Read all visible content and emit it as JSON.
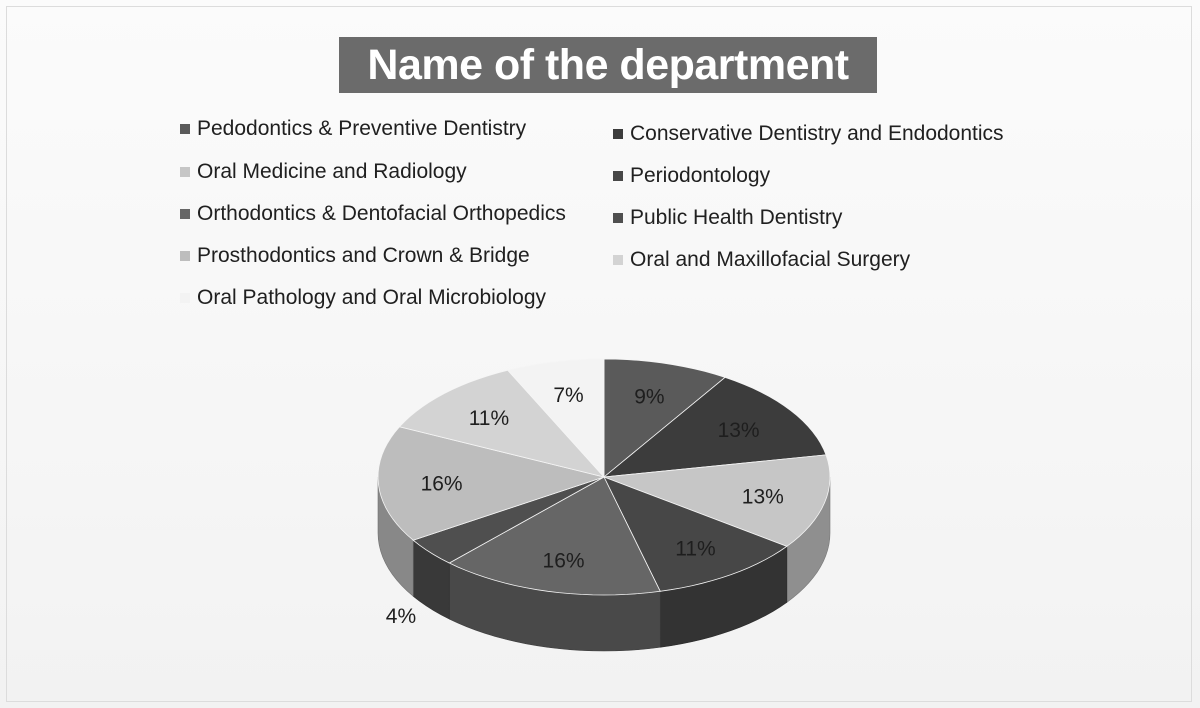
{
  "chart_data": {
    "type": "pie",
    "title": "Name of the department",
    "legend": "top",
    "series": [
      {
        "name": "Pedodontics & Preventive Dentistry",
        "value": 9,
        "label": "9%",
        "color": "#5a5a5a"
      },
      {
        "name": "Conservative Dentistry and Endodontics",
        "value": 13,
        "label": "13%",
        "color": "#3c3c3c"
      },
      {
        "name": "Oral Medicine and Radiology",
        "value": 13,
        "label": "13%",
        "color": "#c6c6c6"
      },
      {
        "name": "Periodontology",
        "value": 11,
        "label": "11%",
        "color": "#474747"
      },
      {
        "name": "Orthodontics & Dentofacial Orthopedics",
        "value": 16,
        "label": "16%",
        "color": "#666666"
      },
      {
        "name": "Public Health Dentistry",
        "value": 4,
        "label": "4%",
        "color": "#4f4f4f"
      },
      {
        "name": "Prosthodontics and Crown & Bridge",
        "value": 16,
        "label": "16%",
        "color": "#bdbdbd"
      },
      {
        "name": "Oral and Maxillofacial Surgery",
        "value": 11,
        "label": "11%",
        "color": "#d3d3d3"
      },
      {
        "name": "Oral Pathology and Oral Microbiology",
        "value": 7,
        "label": "7%",
        "color": "#f3f3f3"
      }
    ]
  }
}
